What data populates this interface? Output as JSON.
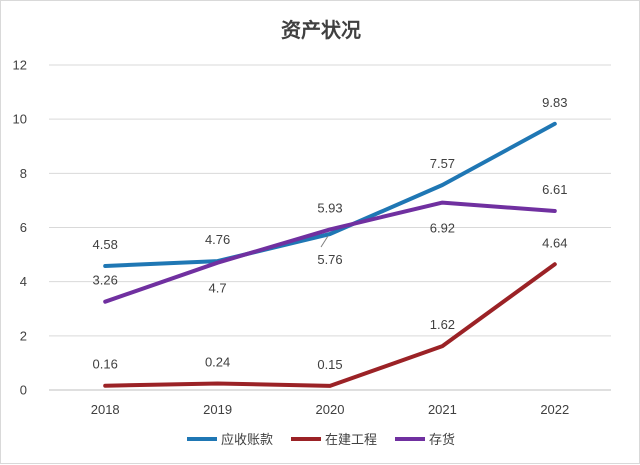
{
  "chart_data": {
    "type": "line",
    "title": "资产状况",
    "xlabel": "",
    "ylabel": "",
    "categories": [
      "2018",
      "2019",
      "2020",
      "2021",
      "2022"
    ],
    "ylim": [
      0,
      12
    ],
    "yticks": [
      "0",
      "2",
      "4",
      "6",
      "8",
      "10",
      "12"
    ],
    "grid": true,
    "legend_position": "bottom",
    "series": [
      {
        "name": "应收账款",
        "color": "#1f77b4",
        "values": [
          4.58,
          4.76,
          5.76,
          7.57,
          9.83
        ],
        "labels": [
          "4.58",
          "4.76",
          "5.76",
          "7.57",
          "9.83"
        ]
      },
      {
        "name": "在建工程",
        "color": "#9b2226",
        "values": [
          0.16,
          0.24,
          0.15,
          1.62,
          4.64
        ],
        "labels": [
          "0.16",
          "0.24",
          "0.15",
          "1.62",
          "4.64"
        ]
      },
      {
        "name": "存货",
        "color": "#7030a0",
        "values": [
          3.26,
          4.7,
          5.93,
          6.92,
          6.61
        ],
        "labels": [
          "3.26",
          "4.7",
          "5.93",
          "6.92",
          "6.61"
        ]
      }
    ]
  }
}
